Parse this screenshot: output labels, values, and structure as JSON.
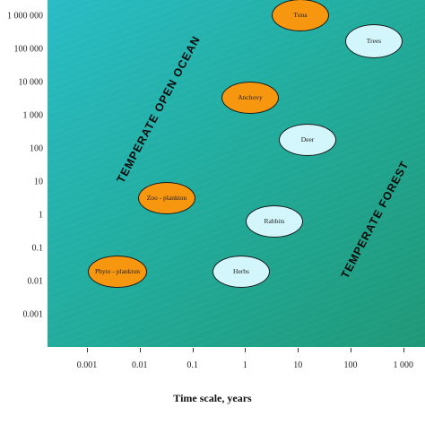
{
  "chart_data": {
    "type": "scatter",
    "xlabel": "Time scale, years",
    "ylabel": "",
    "x_ticks": [
      "0.001",
      "0.01",
      "0.1",
      "1",
      "10",
      "100",
      "1 000"
    ],
    "y_ticks": [
      "1 000 000",
      "100 000",
      "10 000",
      "1 000",
      "100",
      "10",
      "1",
      "0.1",
      "0.01",
      "0.001"
    ],
    "regions": [
      {
        "label": "TEMPERATE  OPEN  OCEAN"
      },
      {
        "label": "TEMPERATE  FOREST"
      }
    ],
    "points": [
      {
        "label": "Tuna",
        "x": 8,
        "y": 1000000,
        "group": "ocean"
      },
      {
        "label": "Trees",
        "x": 170,
        "y": 170000,
        "group": "forest"
      },
      {
        "label": "Anchovy",
        "x": 1.3,
        "y": 3000,
        "group": "ocean"
      },
      {
        "label": "Deer",
        "x": 11,
        "y": 160,
        "group": "forest"
      },
      {
        "label": "Zoo - plankton",
        "x": 0.04,
        "y": 4,
        "group": "ocean"
      },
      {
        "label": "Rabbits",
        "x": 5,
        "y": 0.8,
        "group": "forest"
      },
      {
        "label": "Phyto - plankton",
        "x": 0.004,
        "y": 0.02,
        "group": "ocean"
      },
      {
        "label": "Herbs",
        "x": 1,
        "y": 0.02,
        "group": "forest"
      }
    ]
  },
  "colors": {
    "ocean_fill": "#f7960f",
    "forest_fill": "#d2f6fb",
    "background": "#22ad9f"
  }
}
